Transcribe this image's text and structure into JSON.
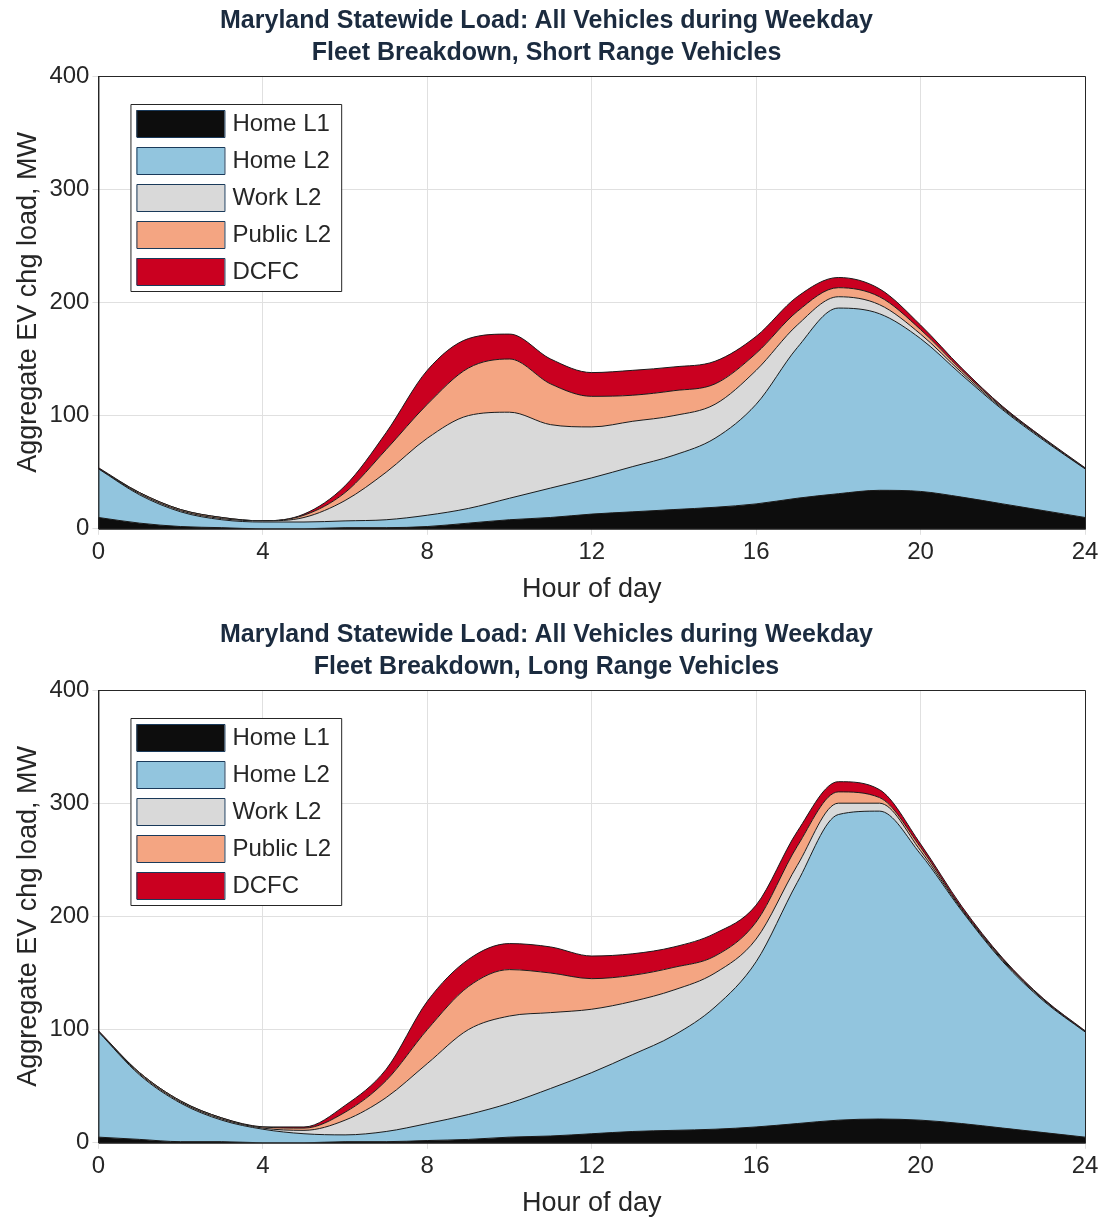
{
  "chart_data": [
    {
      "type": "area",
      "title": "Maryland Statewide Load: All Vehicles during Weekday",
      "subtitle": "Fleet Breakdown, Short Range Vehicles",
      "xlabel": "Hour of day",
      "ylabel": "Aggregate EV chg load, MW",
      "x": [
        0,
        1,
        2,
        3,
        4,
        5,
        6,
        7,
        8,
        9,
        10,
        11,
        12,
        13,
        14,
        15,
        16,
        17,
        18,
        19,
        20,
        21,
        22,
        23,
        24
      ],
      "series": [
        {
          "name": "Home L1",
          "color": "#0d0d0d",
          "values": [
            10,
            5,
            2,
            1,
            0,
            0,
            1,
            1,
            2,
            5,
            8,
            10,
            13,
            15,
            17,
            19,
            22,
            27,
            31,
            34,
            33,
            28,
            22,
            16,
            10
          ]
        },
        {
          "name": "Home L2",
          "color": "#92c5de",
          "values": [
            43,
            25,
            13,
            7,
            6,
            6,
            6,
            7,
            10,
            13,
            19,
            26,
            32,
            40,
            48,
            61,
            88,
            133,
            164,
            156,
            135,
            108,
            83,
            62,
            43
          ]
        },
        {
          "name": "Work L2",
          "color": "#d9d9d9",
          "values": [
            0,
            1,
            1,
            1,
            1,
            4,
            18,
            42,
            68,
            82,
            76,
            56,
            45,
            40,
            35,
            30,
            30,
            20,
            10,
            8,
            4,
            2,
            1,
            1,
            0
          ]
        },
        {
          "name": "Public L2",
          "color": "#f4a582",
          "values": [
            0,
            1,
            1,
            1,
            0,
            2,
            7,
            20,
            30,
            42,
            47,
            36,
            27,
            23,
            22,
            18,
            15,
            12,
            8,
            7,
            4,
            2,
            1,
            0,
            0
          ]
        },
        {
          "name": "DCFC",
          "color": "#ca0020",
          "values": [
            1,
            0,
            0,
            0,
            0,
            1,
            6,
            15,
            30,
            26,
            22,
            22,
            21,
            22,
            21,
            20,
            15,
            13,
            9,
            7,
            4,
            2,
            1,
            1,
            1
          ]
        }
      ],
      "stacked": true,
      "xlim": [
        0,
        24
      ],
      "xticks": [
        0,
        4,
        8,
        12,
        16,
        20,
        24
      ],
      "ylim": [
        0,
        400
      ],
      "yticks": [
        0,
        100,
        200,
        300,
        400
      ],
      "grid": true,
      "legend": "top left"
    },
    {
      "type": "area",
      "title": "Maryland Statewide Load: All Vehicles during Weekday",
      "subtitle": "Fleet Breakdown, Long Range Vehicles",
      "xlabel": "Hour of day",
      "ylabel": "Aggregate EV chg load, MW",
      "x": [
        0,
        1,
        2,
        3,
        4,
        5,
        6,
        7,
        8,
        9,
        10,
        11,
        12,
        13,
        14,
        15,
        16,
        17,
        18,
        19,
        20,
        21,
        22,
        23,
        24
      ],
      "series": [
        {
          "name": "Home L1",
          "color": "#0d0d0d",
          "values": [
            5,
            3,
            1,
            1,
            0,
            0,
            1,
            1,
            2,
            3,
            5,
            6,
            8,
            10,
            11,
            12,
            14,
            17,
            20,
            21,
            20,
            17,
            13,
            9,
            5
          ]
        },
        {
          "name": "Home L2",
          "color": "#92c5de",
          "values": [
            93,
            57,
            34,
            19,
            12,
            8,
            6,
            9,
            15,
            22,
            30,
            42,
            54,
            68,
            84,
            108,
            146,
            213,
            270,
            272,
            235,
            188,
            147,
            116,
            93
          ]
        },
        {
          "name": "Work L2",
          "color": "#d9d9d9",
          "values": [
            0,
            1,
            1,
            1,
            1,
            3,
            13,
            30,
            53,
            75,
            77,
            67,
            56,
            47,
            40,
            30,
            20,
            15,
            10,
            7,
            3,
            1,
            1,
            1,
            0
          ]
        },
        {
          "name": "Public L2",
          "color": "#f4a582",
          "values": [
            0,
            1,
            1,
            1,
            1,
            2,
            7,
            15,
            30,
            38,
            41,
            35,
            27,
            23,
            20,
            15,
            15,
            17,
            10,
            5,
            3,
            1,
            1,
            0,
            0
          ]
        },
        {
          "name": "DCFC",
          "color": "#ca0020",
          "values": [
            1,
            0,
            0,
            0,
            0,
            1,
            6,
            10,
            25,
            24,
            23,
            23,
            20,
            19,
            18,
            20,
            15,
            13,
            9,
            7,
            3,
            2,
            1,
            1,
            1
          ]
        }
      ],
      "stacked": true,
      "xlim": [
        0,
        24
      ],
      "xticks": [
        0,
        4,
        8,
        12,
        16,
        20,
        24
      ],
      "ylim": [
        0,
        400
      ],
      "yticks": [
        0,
        100,
        200,
        300,
        400
      ],
      "grid": true,
      "legend": "top left"
    }
  ]
}
